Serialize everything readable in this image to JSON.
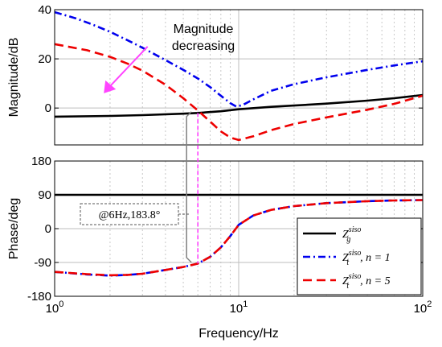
{
  "chart_data": [
    {
      "type": "line",
      "panel": "magnitude",
      "ylabel": "Magnitude/dB",
      "xscale": "log",
      "xlim": [
        1,
        100
      ],
      "ylim": [
        -15,
        40
      ],
      "yticks": [
        40,
        20,
        0
      ],
      "grid": true,
      "series": [
        {
          "id": "g",
          "color": "#000000",
          "style": "solid",
          "x": [
            1,
            2,
            3,
            5,
            6,
            8,
            10,
            15,
            20,
            30,
            50,
            70,
            100
          ],
          "y": [
            -3.5,
            -3.2,
            -2.9,
            -2.3,
            -2.0,
            -1.3,
            -0.5,
            0.5,
            1.0,
            1.8,
            3.0,
            4.0,
            5.3
          ]
        },
        {
          "id": "t1",
          "color": "#0000ee",
          "style": "dashdot",
          "x": [
            1,
            1.3,
            1.6,
            2,
            2.5,
            3,
            4,
            5,
            6,
            7,
            8,
            9,
            9.7,
            10.5,
            12,
            15,
            20,
            30,
            50,
            70,
            100
          ],
          "y": [
            39,
            36.5,
            34,
            31,
            27.5,
            24.5,
            19.5,
            15.5,
            12,
            8.5,
            5,
            2,
            0.6,
            1.2,
            3.5,
            7,
            9.7,
            12.5,
            15.5,
            17.3,
            19
          ]
        },
        {
          "id": "t5",
          "color": "#ee0000",
          "style": "dashed",
          "x": [
            1,
            1.5,
            2,
            2.5,
            3,
            4,
            5,
            6,
            7,
            8,
            9,
            10,
            12,
            15,
            20,
            30,
            50,
            70,
            100
          ],
          "y": [
            26,
            23.5,
            20.8,
            18,
            15.2,
            9.5,
            4,
            -1,
            -5.5,
            -9.5,
            -12,
            -13,
            -11.5,
            -9,
            -6.5,
            -3.8,
            -0.7,
            1.7,
            5
          ]
        }
      ],
      "annotations": [
        {
          "text_lines": [
            "Magnitude",
            "decreasing"
          ],
          "arrow_from": [
            3.2,
            25
          ],
          "arrow_to": [
            1.85,
            6
          ]
        }
      ]
    },
    {
      "type": "line",
      "panel": "phase",
      "xlabel": "Frequency/Hz",
      "ylabel": "Phase/deg",
      "xscale": "log",
      "xlim": [
        1,
        100
      ],
      "ylim": [
        -180,
        180
      ],
      "yticks": [
        180,
        90,
        0,
        -90,
        -180
      ],
      "xtick_base": "10",
      "xtick_exponents": [
        "0",
        "1",
        "2"
      ],
      "grid": true,
      "series": [
        {
          "id": "g",
          "color": "#000000",
          "style": "solid",
          "x": [
            1,
            100
          ],
          "y": [
            90,
            90
          ]
        },
        {
          "id": "t1",
          "color": "#0000ee",
          "style": "dashdot",
          "x": [
            1,
            1.5,
            2,
            2.5,
            3,
            4,
            5,
            6,
            7,
            8,
            9,
            10,
            12,
            15,
            20,
            30,
            50,
            70,
            100
          ],
          "y": [
            -115,
            -122,
            -125,
            -123,
            -120,
            -110,
            -102,
            -93,
            -75,
            -50,
            -20,
            10,
            35,
            50,
            60,
            68,
            73,
            75,
            76
          ]
        },
        {
          "id": "t5",
          "color": "#ee0000",
          "style": "dashed",
          "x": [
            1,
            1.5,
            2,
            2.5,
            3,
            4,
            5,
            6,
            7,
            8,
            9,
            10,
            12,
            15,
            20,
            30,
            50,
            70,
            100
          ],
          "y": [
            -115,
            -121,
            -124,
            -123,
            -120,
            -110,
            -102,
            -93,
            -75,
            -50,
            -20,
            10,
            35,
            50,
            60,
            68,
            73,
            75,
            76
          ]
        }
      ],
      "callout": {
        "text": "@6Hz,183.8°",
        "frequency": 6
      },
      "legend": {
        "placement": "bottom-right",
        "entries": [
          {
            "series": "g",
            "main": "Z",
            "sup": "siso",
            "sub": "g",
            "suffix": ""
          },
          {
            "series": "t1",
            "main": "Z",
            "sup": "siso",
            "sub": "t",
            "suffix": ", n = 1"
          },
          {
            "series": "t5",
            "main": "Z",
            "sup": "siso",
            "sub": "t",
            "suffix": ", n = 5"
          }
        ]
      }
    }
  ]
}
